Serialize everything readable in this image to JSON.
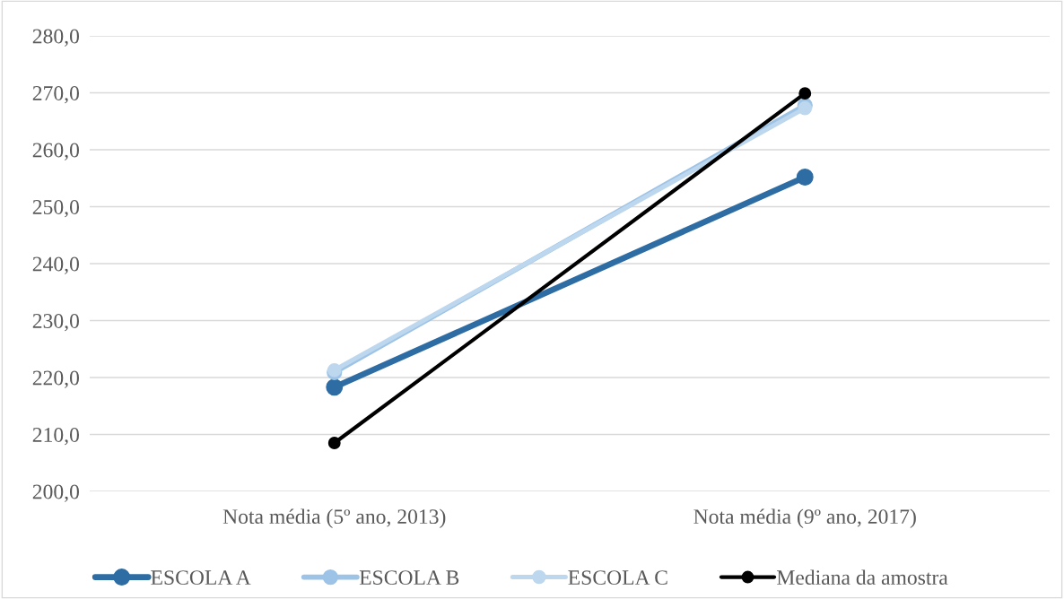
{
  "chart_data": {
    "type": "line",
    "categories": [
      "Nota média (5º ano, 2013)",
      "Nota média (9º ano, 2017)"
    ],
    "series": [
      {
        "name": "ESCOLA A",
        "color": "#2e6ca4",
        "values": [
          218.3,
          255.2
        ]
      },
      {
        "name": "ESCOLA B",
        "color": "#9dc3e6",
        "values": [
          220.9,
          267.8
        ]
      },
      {
        "name": "ESCOLA C",
        "color": "#bdd7ee",
        "values": [
          221.3,
          267.3
        ]
      },
      {
        "name": "Mediana da amostra",
        "color": "#000000",
        "values": [
          208.5,
          269.9
        ]
      }
    ],
    "ylim": [
      200,
      280
    ],
    "yticks": [
      {
        "value": 200,
        "label": "200,0"
      },
      {
        "value": 210,
        "label": "210,0"
      },
      {
        "value": 220,
        "label": "220,0"
      },
      {
        "value": 230,
        "label": "230,0"
      },
      {
        "value": 240,
        "label": "240,0"
      },
      {
        "value": 250,
        "label": "250,0"
      },
      {
        "value": 260,
        "label": "260,0"
      },
      {
        "value": 270,
        "label": "270,0"
      },
      {
        "value": 280,
        "label": "280,0"
      }
    ],
    "grid": "y",
    "legend": "bottom",
    "marker": "circle",
    "line_style": "solid"
  }
}
